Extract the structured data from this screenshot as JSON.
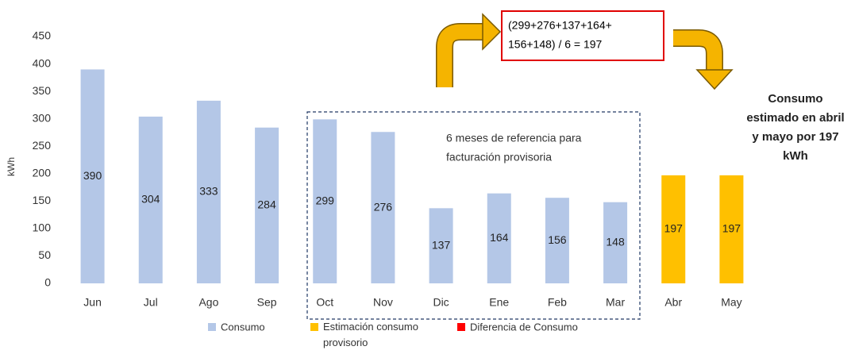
{
  "chart_data": {
    "type": "bar",
    "categories": [
      "Jun",
      "Jul",
      "Ago",
      "Sep",
      "Oct",
      "Nov",
      "Dic",
      "Ene",
      "Feb",
      "Mar",
      "Abr",
      "May"
    ],
    "series": [
      {
        "name": "Consumo",
        "color": "#b4c7e7",
        "values": [
          390,
          304,
          333,
          284,
          299,
          276,
          137,
          164,
          156,
          148,
          null,
          null
        ]
      },
      {
        "name": "Estimación consumo provisorio",
        "color": "#ffc000",
        "values": [
          null,
          null,
          null,
          null,
          null,
          null,
          null,
          null,
          null,
          null,
          197,
          197
        ]
      },
      {
        "name": "Diferencia de Consumo",
        "color": "#ff0000",
        "values": [
          null,
          null,
          null,
          null,
          null,
          null,
          null,
          null,
          null,
          null,
          null,
          null
        ]
      }
    ],
    "y_label": "kWh",
    "ylim": [
      0,
      450
    ],
    "yticks": [
      0,
      50,
      100,
      150,
      200,
      250,
      300,
      350,
      400,
      450
    ],
    "annotations": {
      "formula": [
        "(299+276+137+164+",
        "156+148) / 6 = 197"
      ],
      "reference": [
        "6 meses de referencia para",
        "facturación provisoria"
      ],
      "estimate": [
        "Consumo",
        "estimado en abril",
        "y mayo por 197",
        "kWh"
      ]
    }
  }
}
